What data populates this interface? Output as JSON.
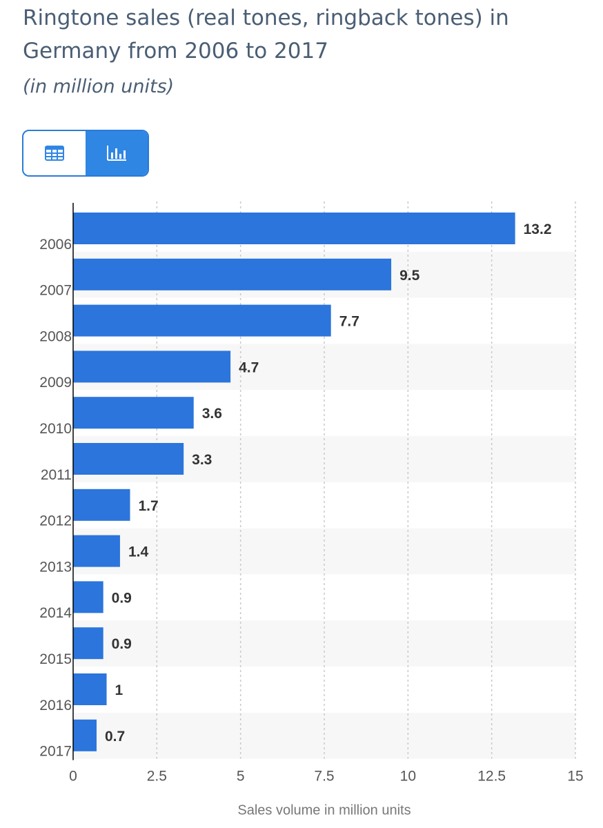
{
  "chart_data": {
    "type": "bar",
    "orientation": "horizontal",
    "title": "Ringtone sales (real tones, ringback tones) in Germany from 2006 to 2017",
    "subtitle": "(in million units)",
    "categories": [
      "2006",
      "2007",
      "2008",
      "2009",
      "2010",
      "2011",
      "2012",
      "2013",
      "2014",
      "2015",
      "2016",
      "2017"
    ],
    "values": [
      13.2,
      9.5,
      7.7,
      4.7,
      3.6,
      3.3,
      1.7,
      1.4,
      0.9,
      0.9,
      1,
      0.7
    ],
    "value_labels": [
      "13.2",
      "9.5",
      "7.7",
      "4.7",
      "3.6",
      "3.3",
      "1.7",
      "1.4",
      "0.9",
      "0.9",
      "1",
      "0.7"
    ],
    "xlabel": "Sales volume in million units",
    "ylabel": "",
    "xlim": [
      0,
      15
    ],
    "xticks": [
      0,
      2.5,
      5,
      7.5,
      10,
      12.5,
      15
    ],
    "xtick_labels": [
      "0",
      "2.5",
      "5",
      "7.5",
      "10",
      "12.5",
      "15"
    ],
    "grid": true,
    "colors": {
      "bar": "#2b75dc",
      "band": "#f7f7f7",
      "grid": "#c8c8c8",
      "label": "#333333",
      "tick": "#555555",
      "axis": "#000000"
    }
  },
  "toggle": {
    "table_icon": "table-icon",
    "chart_icon": "bar-chart-icon",
    "active_color": "#2f86e3"
  }
}
